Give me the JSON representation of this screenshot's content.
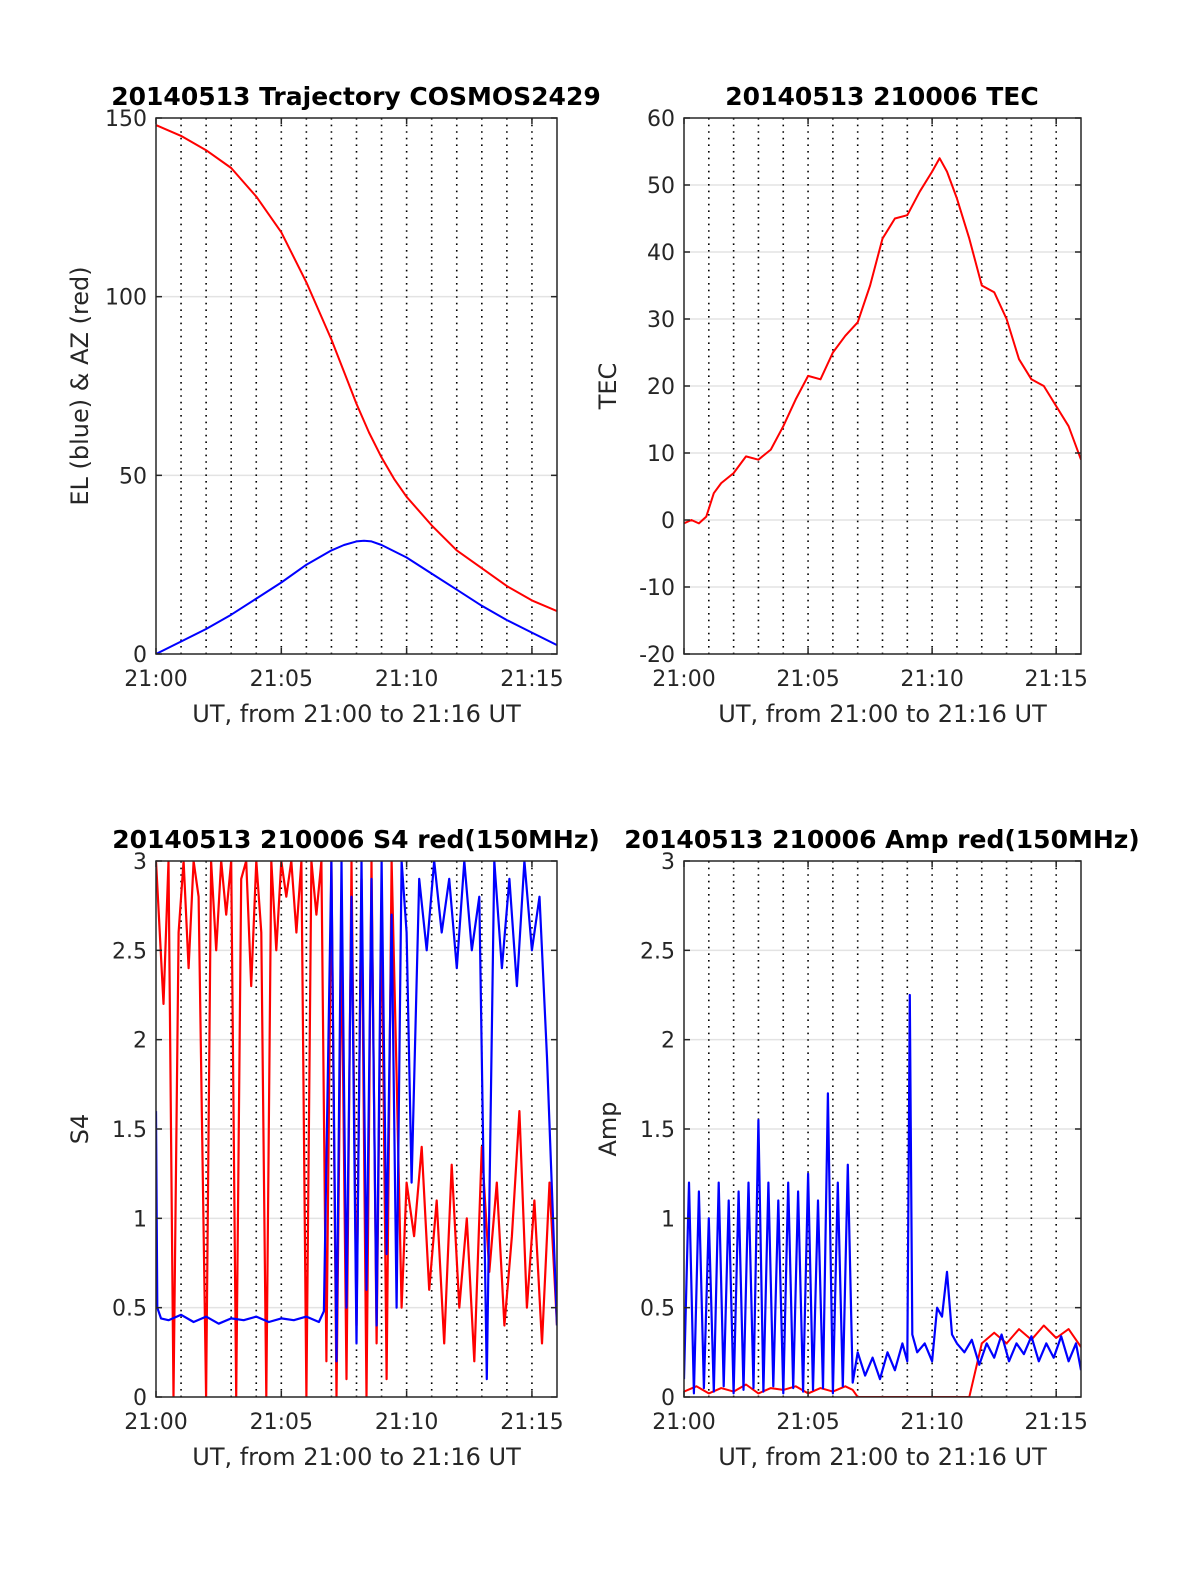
{
  "chart_data": [
    {
      "type": "line",
      "title": "20140513 Trajectory COSMOS2429",
      "xlabel": "UT, from 21:00 to 21:16 UT",
      "ylabel": "EL (blue) & AZ (red)",
      "xlim": [
        0,
        16
      ],
      "ylim": [
        0,
        150
      ],
      "x_ticks": [
        0,
        5,
        10,
        15
      ],
      "x_tick_labels": [
        "21:00",
        "21:05",
        "21:10",
        "21:15"
      ],
      "y_ticks": [
        0,
        50,
        100,
        150
      ],
      "y_tick_labels": [
        "0",
        "50",
        "100",
        "150"
      ],
      "grid": true,
      "series": [
        {
          "color": "#ff0000",
          "x": [
            0,
            1,
            2,
            3,
            4,
            5,
            6,
            7,
            7.5,
            8,
            8.5,
            9,
            9.5,
            10,
            11,
            12,
            13,
            14,
            15,
            16
          ],
          "y": [
            148,
            145,
            141,
            136,
            128,
            118,
            104,
            88,
            79,
            70,
            62,
            55,
            49,
            44,
            36,
            29,
            24,
            19,
            15,
            12
          ]
        },
        {
          "color": "#0000ff",
          "x": [
            0,
            1,
            2,
            3,
            4,
            5,
            6,
            7,
            7.5,
            8,
            8.3,
            8.6,
            9,
            10,
            11,
            12,
            13,
            14,
            15,
            16
          ],
          "y": [
            0,
            3.5,
            7,
            11,
            15.5,
            20,
            25,
            29,
            30.5,
            31.5,
            31.7,
            31.5,
            30.5,
            27,
            22.5,
            18,
            13.5,
            9.5,
            6,
            2.5
          ]
        }
      ]
    },
    {
      "type": "line",
      "title": "20140513 210006 TEC",
      "xlabel": "UT, from 21:00 to 21:16 UT",
      "ylabel": "TEC",
      "xlim": [
        0,
        16
      ],
      "ylim": [
        -20,
        60
      ],
      "x_ticks": [
        0,
        5,
        10,
        15
      ],
      "x_tick_labels": [
        "21:00",
        "21:05",
        "21:10",
        "21:15"
      ],
      "y_ticks": [
        -20,
        -10,
        0,
        10,
        20,
        30,
        40,
        50,
        60
      ],
      "y_tick_labels": [
        "-20",
        "-10",
        "0",
        "10",
        "20",
        "30",
        "40",
        "50",
        "60"
      ],
      "grid": true,
      "series": [
        {
          "color": "#ff0000",
          "x": [
            0,
            0.3,
            0.6,
            0.9,
            1.2,
            1.5,
            2,
            2.5,
            3,
            3.5,
            4,
            4.5,
            5,
            5.5,
            6,
            6.5,
            7,
            7.5,
            8,
            8.5,
            9,
            9.5,
            10,
            10.3,
            10.6,
            11,
            11.5,
            12,
            12.5,
            13,
            13.5,
            14,
            14.5,
            15,
            15.5,
            16
          ],
          "y": [
            -0.5,
            0,
            -0.5,
            0.5,
            4,
            5.5,
            7,
            9.5,
            9,
            10.5,
            14,
            18,
            21.5,
            21,
            25,
            27.5,
            29.5,
            35,
            42,
            45,
            45.5,
            49,
            52,
            54,
            52,
            48,
            42,
            35,
            34,
            30,
            24,
            21,
            20,
            17,
            14,
            9
          ]
        }
      ]
    },
    {
      "type": "line",
      "title": "20140513 210006 S4 red(150MHz)",
      "xlabel": "UT, from 21:00 to 21:16 UT",
      "ylabel": "S4",
      "xlim": [
        0,
        16
      ],
      "ylim": [
        0,
        3
      ],
      "x_ticks": [
        0,
        5,
        10,
        15
      ],
      "x_tick_labels": [
        "21:00",
        "21:05",
        "21:10",
        "21:15"
      ],
      "y_ticks": [
        0,
        0.5,
        1,
        1.5,
        2,
        2.5,
        3
      ],
      "y_tick_labels": [
        "0",
        "0.5",
        "1",
        "1.5",
        "2",
        "2.5",
        "3"
      ],
      "grid": true,
      "series": [
        {
          "color": "#ff0000",
          "x": [
            0,
            0.3,
            0.5,
            0.7,
            0.9,
            1.1,
            1.3,
            1.5,
            1.7,
            2.0,
            2.2,
            2.4,
            2.6,
            2.8,
            3.0,
            3.2,
            3.4,
            3.6,
            3.8,
            4.0,
            4.2,
            4.4,
            4.6,
            4.8,
            5.0,
            5.2,
            5.4,
            5.6,
            5.8,
            6.0,
            6.2,
            6.4,
            6.6,
            6.8,
            7.0,
            7.2,
            7.4,
            7.6,
            7.8,
            8.0,
            8.2,
            8.4,
            8.6,
            8.8,
            9.0,
            9.2,
            9.4,
            9.6,
            9.8,
            10.0,
            10.3,
            10.6,
            10.9,
            11.2,
            11.5,
            11.8,
            12.1,
            12.4,
            12.7,
            13.0,
            13.3,
            13.6,
            13.9,
            14.2,
            14.5,
            14.8,
            15.1,
            15.4,
            15.7,
            16
          ],
          "y": [
            3,
            2.2,
            3,
            0,
            2.6,
            3,
            2.4,
            3,
            2.8,
            0,
            3,
            2.5,
            3,
            2.7,
            3,
            0,
            2.9,
            3,
            2.3,
            3,
            2.6,
            0,
            3,
            2.5,
            3,
            2.8,
            3,
            2.6,
            3,
            0,
            3,
            2.7,
            3,
            0.2,
            3,
            0,
            2.6,
            0.1,
            3,
            0.4,
            2.9,
            0,
            3,
            0.3,
            2.8,
            0.1,
            3,
            1.8,
            0.5,
            1.2,
            0.9,
            1.4,
            0.6,
            1.1,
            0.3,
            1.3,
            0.5,
            1.0,
            0.2,
            1.4,
            0.7,
            1.2,
            0.4,
            0.9,
            1.6,
            0.5,
            1.1,
            0.3,
            1.2,
            0.4
          ]
        },
        {
          "color": "#0000ff",
          "x": [
            0,
            0.05,
            0.2,
            0.5,
            1.0,
            1.5,
            2.0,
            2.5,
            3.0,
            3.5,
            4.0,
            4.5,
            5.0,
            5.5,
            6.0,
            6.5,
            6.7,
            7.0,
            7.2,
            7.4,
            7.6,
            7.8,
            8.0,
            8.2,
            8.4,
            8.6,
            8.8,
            9.0,
            9.2,
            9.4,
            9.6,
            9.8,
            10.0,
            10.2,
            10.5,
            10.8,
            11.1,
            11.4,
            11.7,
            12.0,
            12.3,
            12.6,
            12.9,
            13.2,
            13.5,
            13.8,
            14.1,
            14.4,
            14.7,
            15.0,
            15.3,
            15.6,
            16
          ],
          "y": [
            1.6,
            0.5,
            0.44,
            0.43,
            0.46,
            0.42,
            0.45,
            0.41,
            0.44,
            0.43,
            0.45,
            0.42,
            0.44,
            0.43,
            0.45,
            0.42,
            0.48,
            3,
            0.2,
            3,
            0.5,
            2.8,
            0.3,
            3,
            0.6,
            2.9,
            0.4,
            3,
            0.8,
            2.7,
            0.5,
            3,
            2.6,
            1.2,
            2.9,
            2.5,
            3,
            2.6,
            2.9,
            2.4,
            3,
            2.5,
            2.8,
            0.1,
            3,
            2.4,
            2.9,
            2.3,
            3,
            2.5,
            2.8,
            1.9,
            0.4
          ]
        }
      ]
    },
    {
      "type": "line",
      "title": "20140513 210006 Amp red(150MHz)",
      "xlabel": "UT, from 21:00 to 21:16 UT",
      "ylabel": "Amp",
      "xlim": [
        0,
        16
      ],
      "ylim": [
        0,
        3
      ],
      "x_ticks": [
        0,
        5,
        10,
        15
      ],
      "x_tick_labels": [
        "21:00",
        "21:05",
        "21:10",
        "21:15"
      ],
      "y_ticks": [
        0,
        0.5,
        1,
        1.5,
        2,
        2.5,
        3
      ],
      "y_tick_labels": [
        "0",
        "0.5",
        "1",
        "1.5",
        "2",
        "2.5",
        "3"
      ],
      "grid": true,
      "series": [
        {
          "color": "#ff0000",
          "x": [
            0,
            0.5,
            1,
            1.5,
            2,
            2.5,
            3,
            3.5,
            4,
            4.5,
            5,
            5.5,
            6,
            6.5,
            6.8,
            7.0,
            7.5,
            8,
            8.5,
            9,
            9.5,
            10,
            10.5,
            11,
            11.5,
            12,
            12.5,
            13,
            13.5,
            14,
            14.5,
            15,
            15.5,
            16
          ],
          "y": [
            0.03,
            0.06,
            0.02,
            0.05,
            0.03,
            0.07,
            0.02,
            0.05,
            0.04,
            0.06,
            0.02,
            0.05,
            0.03,
            0.06,
            0.04,
            0.0,
            0.0,
            0.0,
            0.0,
            0.0,
            0.0,
            0.0,
            0.0,
            0.0,
            0.0,
            0.3,
            0.36,
            0.3,
            0.38,
            0.32,
            0.4,
            0.33,
            0.38,
            0.28
          ]
        },
        {
          "color": "#0000ff",
          "x": [
            0,
            0.2,
            0.4,
            0.6,
            0.8,
            1.0,
            1.2,
            1.4,
            1.6,
            1.8,
            2.0,
            2.2,
            2.4,
            2.6,
            2.8,
            3.0,
            3.2,
            3.4,
            3.6,
            3.8,
            4.0,
            4.2,
            4.4,
            4.6,
            4.8,
            5.0,
            5.2,
            5.4,
            5.6,
            5.8,
            6.0,
            6.2,
            6.4,
            6.6,
            6.8,
            7.0,
            7.3,
            7.6,
            7.9,
            8.2,
            8.5,
            8.8,
            9.0,
            9.1,
            9.2,
            9.4,
            9.7,
            10.0,
            10.2,
            10.4,
            10.6,
            10.8,
            11.0,
            11.3,
            11.6,
            11.9,
            12.2,
            12.5,
            12.8,
            13.1,
            13.4,
            13.7,
            14.0,
            14.3,
            14.6,
            14.9,
            15.2,
            15.5,
            15.8,
            16
          ],
          "y": [
            0.1,
            1.2,
            0.02,
            1.15,
            0.05,
            1.0,
            0.03,
            1.2,
            0.06,
            1.1,
            0.02,
            1.15,
            0.04,
            1.2,
            0.05,
            1.55,
            0.03,
            1.2,
            0.06,
            1.1,
            0.02,
            1.2,
            0.05,
            1.15,
            0.03,
            1.25,
            0.04,
            1.1,
            0.05,
            1.7,
            0.02,
            1.2,
            0.06,
            1.3,
            0.08,
            0.25,
            0.12,
            0.22,
            0.1,
            0.25,
            0.15,
            0.3,
            0.2,
            2.25,
            0.35,
            0.25,
            0.3,
            0.2,
            0.5,
            0.45,
            0.7,
            0.35,
            0.3,
            0.25,
            0.32,
            0.18,
            0.3,
            0.22,
            0.35,
            0.2,
            0.3,
            0.24,
            0.34,
            0.2,
            0.3,
            0.22,
            0.34,
            0.2,
            0.3,
            0.15
          ]
        }
      ]
    }
  ]
}
